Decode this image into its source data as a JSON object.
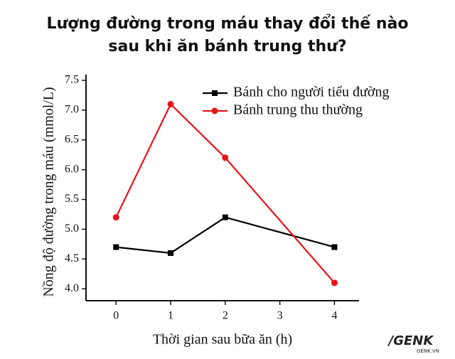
{
  "chart_data": {
    "type": "line",
    "title": [
      "Lượng đường trong máu thay đổi thế nào",
      "sau khi ăn bánh trung thư?"
    ],
    "x_label": "Thời gian sau bữa ăn (h)",
    "y_label": "Nồng độ đường trong máu (mmol/L)",
    "x": [
      0,
      1,
      2,
      4
    ],
    "series": [
      {
        "name": "Bánh cho người tiểu đường",
        "color": "#000000",
        "marker": "square",
        "values": [
          4.7,
          4.6,
          5.2,
          4.7
        ]
      },
      {
        "name": "Bánh trung thu thường",
        "color": "#e8141b",
        "marker": "circle",
        "values": [
          5.2,
          7.1,
          6.2,
          4.1
        ]
      }
    ],
    "xlim": [
      -0.55,
      4.45
    ],
    "xticks": [
      0,
      1,
      2,
      3,
      4
    ],
    "ylim": [
      3.8,
      7.5
    ],
    "yticks": [
      {
        "value": 4,
        "label": "4.0"
      },
      {
        "value": 4.5,
        "label": "4.5"
      },
      {
        "value": 5,
        "label": "5.0"
      },
      {
        "value": 5.5,
        "label": "5.5"
      },
      {
        "value": 6,
        "label": "6.0"
      },
      {
        "value": 6.5,
        "label": "6.5"
      },
      {
        "value": 7,
        "label": "7.0"
      },
      {
        "value": 7.5,
        "label": "7.5"
      }
    ],
    "legend": "upper right",
    "grid": false,
    "watermark": [
      "/GENK",
      "GENK.VN"
    ]
  }
}
